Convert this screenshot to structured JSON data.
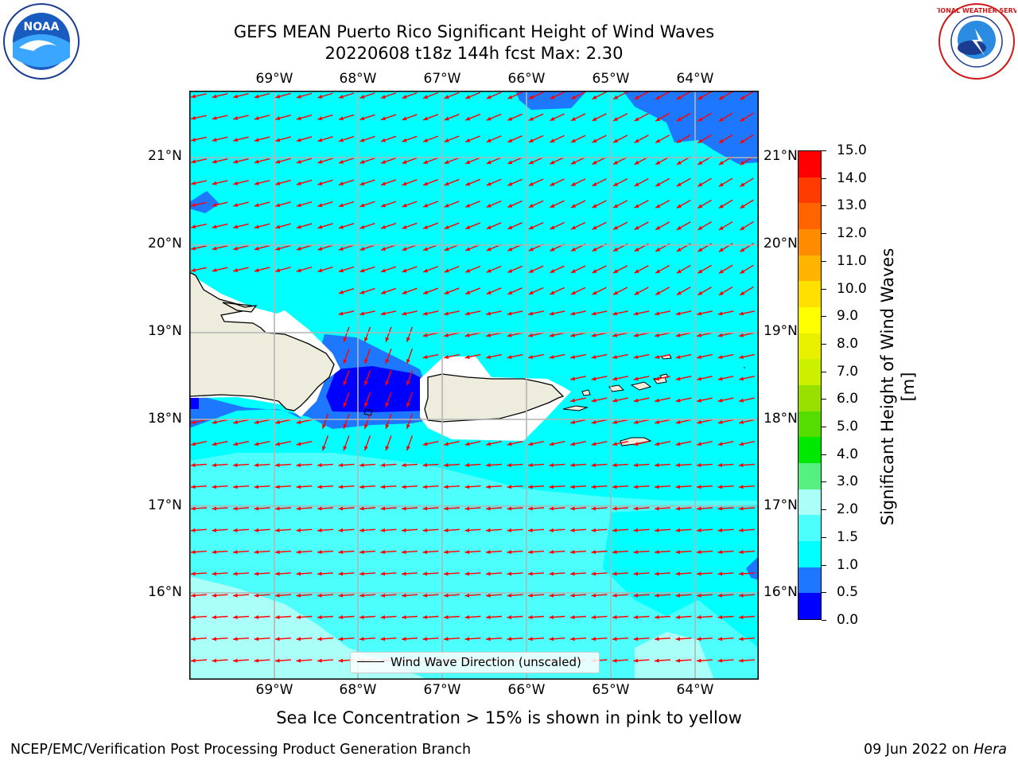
{
  "header": {
    "title_line1": "GEFS MEAN Puerto Rico Significant Height of Wind Waves",
    "title_line2": "20220608 t18z 144h fcst   Max: 2.30"
  },
  "logos": {
    "left": "NOAA",
    "right": "NATIONAL WEATHER SERVICE"
  },
  "map": {
    "lon_labels": [
      "69°W",
      "68°W",
      "67°W",
      "66°W",
      "65°W",
      "64°W"
    ],
    "lat_labels": [
      "21°N",
      "20°N",
      "19°N",
      "18°N",
      "17°N",
      "16°N"
    ],
    "legend_label": "Wind Wave Direction (unscaled)",
    "colors": {
      "land": "#eeecdc",
      "level_0_05": "#0000ff",
      "level_05_1": "#1e78ff",
      "level_1_15": "#00ffff",
      "level_15_2": "#4cfffc",
      "level_2_3": "#aafff9",
      "arrow": "#ff0000"
    }
  },
  "colorbar": {
    "title": "Significant Height of Wind Waves [m]",
    "ticks": [
      "15.0",
      "14.0",
      "13.0",
      "12.0",
      "11.0",
      "10.0",
      "9.0",
      "8.0",
      "7.0",
      "6.0",
      "5.0",
      "4.0",
      "3.0",
      "2.0",
      "1.5",
      "1.0",
      "0.5",
      "0.0"
    ],
    "colors_bottom_to_top": [
      "#0000ff",
      "#1e78ff",
      "#00ffff",
      "#4cfffc",
      "#aafff9",
      "#55f080",
      "#00e800",
      "#55dd00",
      "#99e000",
      "#ccf000",
      "#e8f000",
      "#ffff00",
      "#ffe000",
      "#ffb400",
      "#ff8c00",
      "#ff6400",
      "#ff3c00",
      "#ff0000"
    ]
  },
  "footer": {
    "note": "Sea Ice Concentration > 15% is shown in pink to yellow",
    "left": "NCEP/EMC/Verification Post Processing Product Generation Branch",
    "right_prefix": "09 Jun 2022 on ",
    "right_italic": "Hera"
  }
}
